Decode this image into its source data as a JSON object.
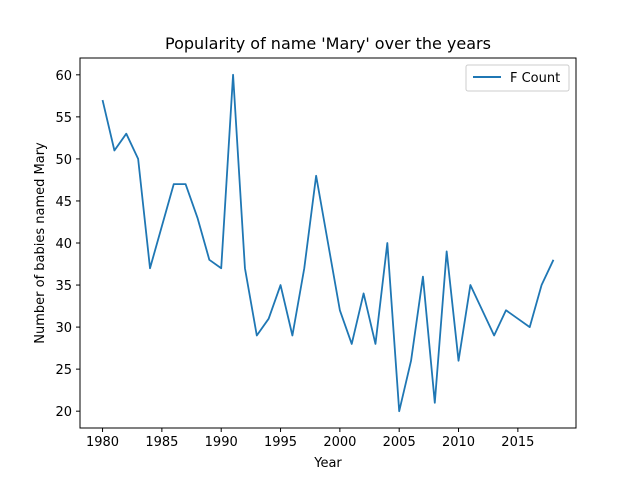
{
  "chart_data": {
    "type": "line",
    "title": "Popularity of name 'Mary' over the years",
    "xlabel": "Year",
    "ylabel": "Number of babies named Mary",
    "xlim": [
      1978.1,
      2019.9
    ],
    "ylim": [
      18,
      62
    ],
    "xticks": [
      "1980",
      "1985",
      "1990",
      "1995",
      "2000",
      "2005",
      "2010",
      "2015"
    ],
    "yticks": [
      "20",
      "25",
      "30",
      "35",
      "40",
      "45",
      "50",
      "55",
      "60"
    ],
    "legend": "top-right",
    "grid": false,
    "series": [
      {
        "name": "F Count",
        "color": "#1f77b4",
        "x": [
          1980,
          1981,
          1982,
          1983,
          1984,
          1985,
          1986,
          1987,
          1988,
          1989,
          1990,
          1991,
          1992,
          1993,
          1994,
          1995,
          1996,
          1997,
          1998,
          1999,
          2000,
          2001,
          2002,
          2003,
          2004,
          2005,
          2006,
          2007,
          2008,
          2009,
          2010,
          2011,
          2012,
          2013,
          2014,
          2015,
          2016,
          2017,
          2018
        ],
        "y": [
          57,
          51,
          53,
          50,
          37,
          42,
          47,
          47,
          43,
          38,
          37,
          60,
          37,
          29,
          31,
          35,
          29,
          37,
          48,
          40,
          32,
          28,
          34,
          28,
          40,
          20,
          26,
          36,
          21,
          39,
          26,
          35,
          32,
          29,
          32,
          31,
          30,
          35,
          38
        ]
      }
    ]
  }
}
